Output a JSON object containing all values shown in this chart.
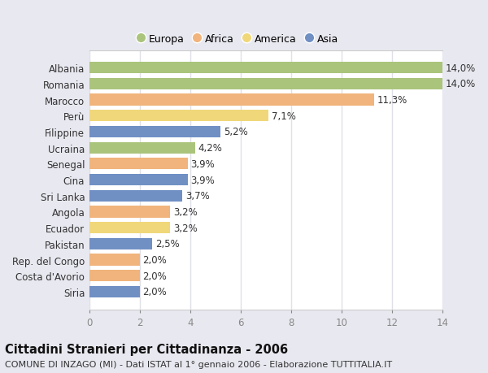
{
  "categories": [
    "Albania",
    "Romania",
    "Marocco",
    "Perù",
    "Filippine",
    "Ucraina",
    "Senegal",
    "Cina",
    "Sri Lanka",
    "Angola",
    "Ecuador",
    "Pakistan",
    "Rep. del Congo",
    "Costa d'Avorio",
    "Siria"
  ],
  "values": [
    14.0,
    14.0,
    11.3,
    7.1,
    5.2,
    4.2,
    3.9,
    3.9,
    3.7,
    3.2,
    3.2,
    2.5,
    2.0,
    2.0,
    2.0
  ],
  "regions": [
    "Europa",
    "Europa",
    "Africa",
    "America",
    "Asia",
    "Europa",
    "Africa",
    "Asia",
    "Asia",
    "Africa",
    "America",
    "Asia",
    "Africa",
    "Africa",
    "Asia"
  ],
  "colors": {
    "Europa": "#aac47c",
    "Africa": "#f0b47c",
    "America": "#f0d87a",
    "Asia": "#7090c4"
  },
  "labels": [
    "14,0%",
    "14,0%",
    "11,3%",
    "7,1%",
    "5,2%",
    "4,2%",
    "3,9%",
    "3,9%",
    "3,7%",
    "3,2%",
    "3,2%",
    "2,5%",
    "2,0%",
    "2,0%",
    "2,0%"
  ],
  "title": "Cittadini Stranieri per Cittadinanza - 2006",
  "subtitle": "COMUNE DI INZAGO (MI) - Dati ISTAT al 1° gennaio 2006 - Elaborazione TUTTITALIA.IT",
  "xlim": [
    0,
    14
  ],
  "xticks": [
    0,
    2,
    4,
    6,
    8,
    10,
    12,
    14
  ],
  "legend_order": [
    "Europa",
    "Africa",
    "America",
    "Asia"
  ],
  "fig_bg": "#e8e8f0",
  "plot_bg": "#ffffff",
  "grid_color": "#e0e0e8",
  "label_fontsize": 8.5,
  "ytick_fontsize": 8.5,
  "xtick_fontsize": 8.5,
  "title_fontsize": 10.5,
  "subtitle_fontsize": 8,
  "bar_height": 0.72
}
